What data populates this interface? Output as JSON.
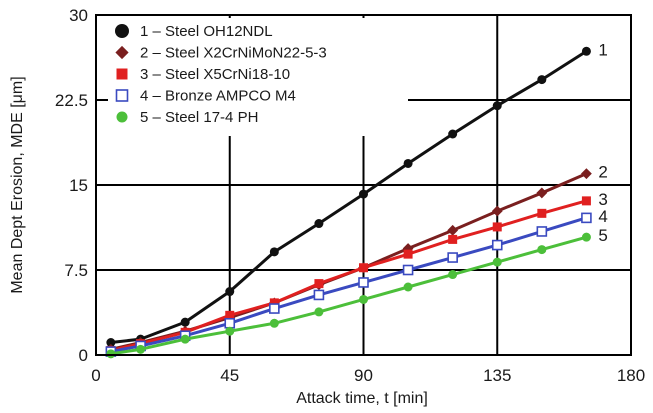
{
  "chart_data": {
    "type": "line",
    "title": "",
    "xlabel": "Attack time, t [min]",
    "ylabel": "Mean Dept Erosion, MDE [μm]",
    "xlim": [
      0,
      180
    ],
    "ylim": [
      0,
      30
    ],
    "xticks": [
      "0",
      "45",
      "90",
      "135",
      "180"
    ],
    "yticks": [
      "0",
      "7.5",
      "15",
      "22.5",
      "30"
    ],
    "grid": true,
    "legend_position": "top-left",
    "series": [
      {
        "name": "1 – Steel OH12NDL",
        "end_label": "1",
        "color": "#111111",
        "marker": "circle-filled",
        "x": [
          5,
          15,
          30,
          45,
          60,
          75,
          90,
          105,
          120,
          135,
          150,
          165
        ],
        "y": [
          1.1,
          1.4,
          2.9,
          5.6,
          9.1,
          11.6,
          14.2,
          16.9,
          19.5,
          22.0,
          24.3,
          26.8
        ]
      },
      {
        "name": "2 – Steel X2CrNiMoN22-5-3",
        "end_label": "2",
        "color": "#7a1f1f",
        "marker": "diamond-filled",
        "x": [
          5,
          15,
          30,
          45,
          60,
          75,
          90,
          105,
          120,
          135,
          150,
          165
        ],
        "y": [
          0.5,
          1.1,
          2.1,
          3.3,
          4.6,
          6.2,
          7.7,
          9.4,
          11.0,
          12.7,
          14.3,
          16.0
        ]
      },
      {
        "name": "3 – Steel X5CrNi18-10",
        "end_label": "3",
        "color": "#e02020",
        "marker": "square-filled",
        "x": [
          5,
          15,
          30,
          45,
          60,
          75,
          90,
          105,
          120,
          135,
          150,
          165
        ],
        "y": [
          0.4,
          1.0,
          2.0,
          3.5,
          4.6,
          6.3,
          7.7,
          8.9,
          10.2,
          11.3,
          12.5,
          13.6
        ]
      },
      {
        "name": "4 – Bronze AMPCO M4",
        "end_label": "4",
        "color": "#3a4ac0",
        "marker": "square-open",
        "x": [
          5,
          15,
          30,
          45,
          60,
          75,
          90,
          105,
          120,
          135,
          150,
          165
        ],
        "y": [
          0.3,
          0.8,
          1.7,
          2.8,
          4.1,
          5.3,
          6.4,
          7.5,
          8.6,
          9.7,
          10.9,
          12.1
        ]
      },
      {
        "name": "5 – Steel 17-4 PH",
        "end_label": "5",
        "color": "#4cbf3a",
        "marker": "circle-filled",
        "x": [
          5,
          15,
          30,
          45,
          60,
          75,
          90,
          105,
          120,
          135,
          150,
          165
        ],
        "y": [
          0.1,
          0.5,
          1.4,
          2.1,
          2.8,
          3.8,
          4.9,
          6.0,
          7.1,
          8.2,
          9.3,
          10.4
        ]
      }
    ]
  }
}
